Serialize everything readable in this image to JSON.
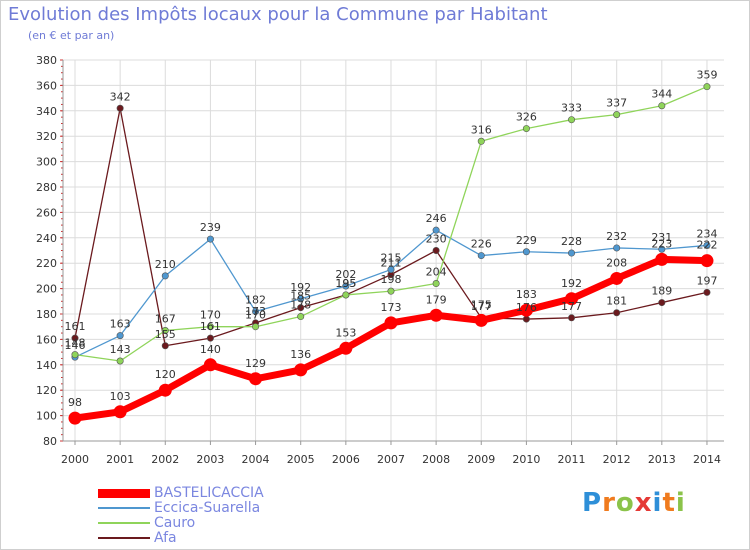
{
  "header": {
    "title": "Evolution des Impôts locaux pour la Commune par Habitant",
    "subtitle": "(en € et par an)"
  },
  "logo": {
    "text": "Proxiti",
    "colors": [
      "#2e8fd8",
      "#f07b1e",
      "#8bc34a",
      "#e53935",
      "#2e8fd8",
      "#f07b1e",
      "#8bc34a"
    ]
  },
  "chart_data": {
    "type": "line",
    "x": [
      2000,
      2001,
      2002,
      2003,
      2004,
      2005,
      2006,
      2007,
      2008,
      2009,
      2010,
      2011,
      2012,
      2013,
      2014
    ],
    "ylim": [
      80,
      380
    ],
    "yticks": [
      80,
      100,
      120,
      140,
      160,
      180,
      200,
      220,
      240,
      260,
      280,
      300,
      320,
      340,
      360,
      380
    ],
    "grid": true,
    "legend_position": "bottom-left",
    "series": [
      {
        "name": "BASTELICACCIA",
        "color": "#ff0000",
        "values": [
          98,
          103,
          120,
          140,
          129,
          136,
          153,
          173,
          179,
          175,
          183,
          192,
          208,
          223,
          222
        ],
        "labels": [
          "98",
          "103",
          "120",
          "140",
          "129",
          "136",
          "153",
          "173",
          "179",
          "175",
          "183",
          "192",
          "208",
          "223",
          "222"
        ]
      },
      {
        "name": "Eccica-Suarella",
        "color": "#4f97cf",
        "values": [
          146,
          163,
          210,
          239,
          182,
          192,
          202,
          215,
          246,
          226,
          229,
          228,
          232,
          231,
          234
        ],
        "labels": [
          "146",
          "163",
          "210",
          "239",
          "182",
          "192",
          "202",
          "215",
          "246",
          "226",
          "229",
          "228",
          "232",
          "231",
          "234"
        ]
      },
      {
        "name": "Cauro",
        "color": "#8fd45a",
        "values": [
          148,
          143,
          167,
          170,
          170,
          178,
          195,
          198,
          204,
          316,
          326,
          333,
          337,
          344,
          359
        ],
        "labels": [
          "148",
          "143",
          "167",
          "170",
          "170",
          "178",
          "195",
          "198",
          "204",
          "316",
          "326",
          "333",
          "337",
          "344",
          "359"
        ]
      },
      {
        "name": "Afa",
        "color": "#6b1a1e",
        "values": [
          161,
          342,
          155,
          161,
          173,
          185,
          195,
          211,
          230,
          177,
          176,
          177,
          181,
          189,
          197
        ],
        "labels": [
          "161",
          "342",
          "155",
          "161",
          "173",
          "185",
          "195",
          "211",
          "230",
          "177",
          "176",
          "177",
          "181",
          "189",
          "197"
        ]
      }
    ]
  }
}
